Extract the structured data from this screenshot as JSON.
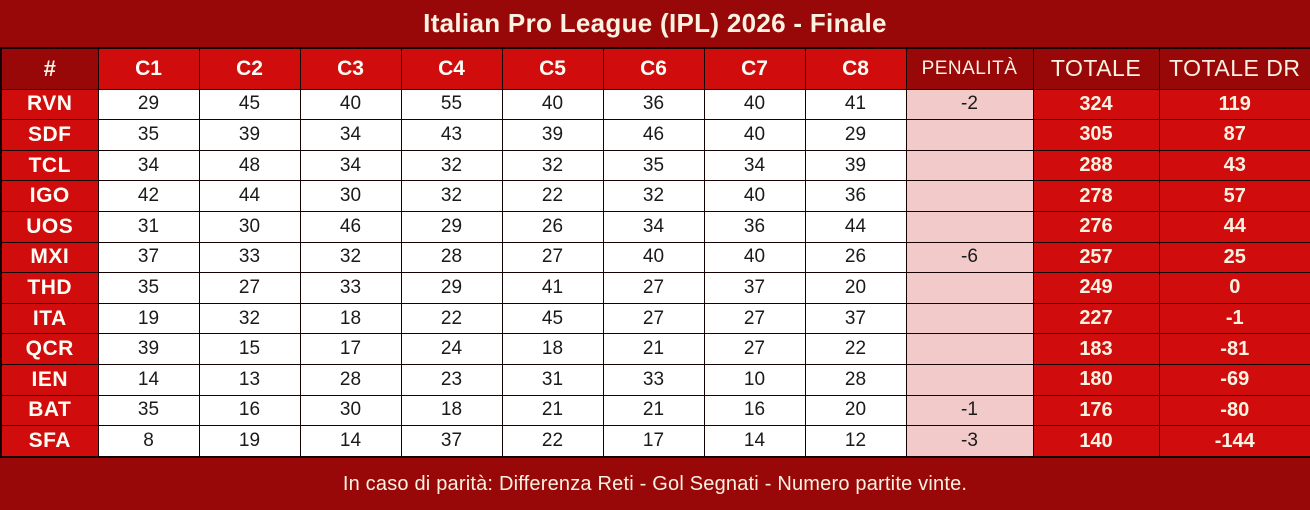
{
  "title": "Italian Pro League (IPL) 2026 - Finale",
  "footer_note": "In caso di parità: Differenza Reti - Gol Segnati - Numero partite vinte.",
  "colors": {
    "dark_red": "#990808",
    "bright_red": "#D00C0C",
    "penalty_pink": "#F2CACA",
    "border_black": "#150101",
    "header_text": "#FBF2E2",
    "cell_text": "#1A1A1A"
  },
  "table": {
    "rank_header": "#",
    "round_headers": [
      "C1",
      "C2",
      "C3",
      "C4",
      "C5",
      "C6",
      "C7",
      "C8"
    ],
    "penalty_header": "PENALITÀ",
    "total_header": "TOTALE",
    "total_dr_header": "TOTALE DR",
    "rows": [
      {
        "team": "RVN",
        "scores": [
          29,
          45,
          40,
          55,
          40,
          36,
          40,
          41
        ],
        "penalty": "-2",
        "total": "324",
        "total_dr": "119"
      },
      {
        "team": "SDF",
        "scores": [
          35,
          39,
          34,
          43,
          39,
          46,
          40,
          29
        ],
        "penalty": "",
        "total": "305",
        "total_dr": "87"
      },
      {
        "team": "TCL",
        "scores": [
          34,
          48,
          34,
          32,
          32,
          35,
          34,
          39
        ],
        "penalty": "",
        "total": "288",
        "total_dr": "43"
      },
      {
        "team": "IGO",
        "scores": [
          42,
          44,
          30,
          32,
          22,
          32,
          40,
          36
        ],
        "penalty": "",
        "total": "278",
        "total_dr": "57"
      },
      {
        "team": "UOS",
        "scores": [
          31,
          30,
          46,
          29,
          26,
          34,
          36,
          44
        ],
        "penalty": "",
        "total": "276",
        "total_dr": "44"
      },
      {
        "team": "MXI",
        "scores": [
          37,
          33,
          32,
          28,
          27,
          40,
          40,
          26
        ],
        "penalty": "-6",
        "total": "257",
        "total_dr": "25"
      },
      {
        "team": "THD",
        "scores": [
          35,
          27,
          33,
          29,
          41,
          27,
          37,
          20
        ],
        "penalty": "",
        "total": "249",
        "total_dr": "0"
      },
      {
        "team": "ITA",
        "scores": [
          19,
          32,
          18,
          22,
          45,
          27,
          27,
          37
        ],
        "penalty": "",
        "total": "227",
        "total_dr": "-1"
      },
      {
        "team": "QCR",
        "scores": [
          39,
          15,
          17,
          24,
          18,
          21,
          27,
          22
        ],
        "penalty": "",
        "total": "183",
        "total_dr": "-81"
      },
      {
        "team": "IEN",
        "scores": [
          14,
          13,
          28,
          23,
          31,
          33,
          10,
          28
        ],
        "penalty": "",
        "total": "180",
        "total_dr": "-69"
      },
      {
        "team": "BAT",
        "scores": [
          35,
          16,
          30,
          18,
          21,
          21,
          16,
          20
        ],
        "penalty": "-1",
        "total": "176",
        "total_dr": "-80"
      },
      {
        "team": "SFA",
        "scores": [
          8,
          19,
          14,
          37,
          22,
          17,
          14,
          12
        ],
        "penalty": "-3",
        "total": "140",
        "total_dr": "-144"
      }
    ]
  },
  "chart_data": {
    "type": "table",
    "title": "Italian Pro League (IPL) 2026 - Finale",
    "columns": [
      "#",
      "C1",
      "C2",
      "C3",
      "C4",
      "C5",
      "C6",
      "C7",
      "C8",
      "PENALITÀ",
      "TOTALE",
      "TOTALE DR"
    ],
    "rows": [
      [
        "RVN",
        29,
        45,
        40,
        55,
        40,
        36,
        40,
        41,
        -2,
        324,
        119
      ],
      [
        "SDF",
        35,
        39,
        34,
        43,
        39,
        46,
        40,
        29,
        "",
        305,
        87
      ],
      [
        "TCL",
        34,
        48,
        34,
        32,
        32,
        35,
        34,
        39,
        "",
        288,
        43
      ],
      [
        "IGO",
        42,
        44,
        30,
        32,
        22,
        32,
        40,
        36,
        "",
        278,
        57
      ],
      [
        "UOS",
        31,
        30,
        46,
        29,
        26,
        34,
        36,
        44,
        "",
        276,
        44
      ],
      [
        "MXI",
        37,
        33,
        32,
        28,
        27,
        40,
        40,
        26,
        -6,
        257,
        25
      ],
      [
        "THD",
        35,
        27,
        33,
        29,
        41,
        27,
        37,
        20,
        "",
        249,
        0
      ],
      [
        "ITA",
        19,
        32,
        18,
        22,
        45,
        27,
        27,
        37,
        "",
        227,
        -1
      ],
      [
        "QCR",
        39,
        15,
        17,
        24,
        18,
        21,
        27,
        22,
        "",
        183,
        -81
      ],
      [
        "IEN",
        14,
        13,
        28,
        23,
        31,
        33,
        10,
        28,
        "",
        180,
        -69
      ],
      [
        "BAT",
        35,
        16,
        30,
        18,
        21,
        21,
        16,
        20,
        -1,
        176,
        -80
      ],
      [
        "SFA",
        8,
        19,
        14,
        37,
        22,
        17,
        14,
        12,
        -3,
        140,
        -144
      ]
    ],
    "footnote": "In caso di parità: Differenza Reti - Gol Segnati - Numero partite vinte."
  }
}
